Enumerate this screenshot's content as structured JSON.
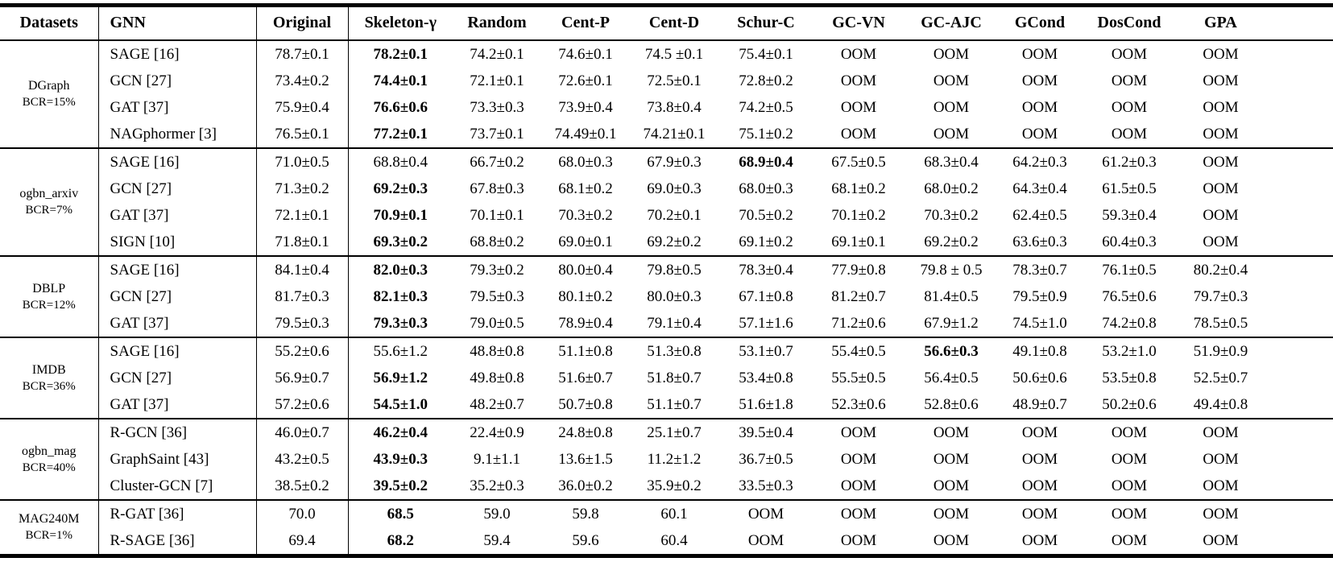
{
  "table": {
    "header": [
      "Datasets",
      "GNN",
      "Original",
      "Skeleton-γ",
      "Random",
      "Cent-P",
      "Cent-D",
      "Schur-C",
      "GC-VN",
      "GC-AJC",
      "GCond",
      "DosCond",
      "GPA"
    ],
    "oom_label": "OOM",
    "groups": [
      {
        "dataset": "DGraph",
        "bcr": "BCR=15%",
        "rows": [
          {
            "gnn": "SAGE [16]",
            "values": [
              "78.7±0.1",
              "78.2±0.1",
              "74.2±0.1",
              "74.6±0.1",
              "74.5 ±0.1",
              "75.4±0.1",
              "OOM",
              "OOM",
              "OOM",
              "OOM",
              "OOM"
            ],
            "bold": [
              1
            ]
          },
          {
            "gnn": "GCN [27]",
            "values": [
              "73.4±0.2",
              "74.4±0.1",
              "72.1±0.1",
              "72.6±0.1",
              "72.5±0.1",
              "72.8±0.2",
              "OOM",
              "OOM",
              "OOM",
              "OOM",
              "OOM"
            ],
            "bold": [
              1
            ]
          },
          {
            "gnn": "GAT [37]",
            "values": [
              "75.9±0.4",
              "76.6±0.6",
              "73.3±0.3",
              "73.9±0.4",
              "73.8±0.4",
              "74.2±0.5",
              "OOM",
              "OOM",
              "OOM",
              "OOM",
              "OOM"
            ],
            "bold": [
              1
            ]
          },
          {
            "gnn": "NAGphormer [3]",
            "values": [
              "76.5±0.1",
              "77.2±0.1",
              "73.7±0.1",
              "74.49±0.1",
              "74.21±0.1",
              "75.1±0.2",
              "OOM",
              "OOM",
              "OOM",
              "OOM",
              "OOM"
            ],
            "bold": [
              1
            ]
          }
        ]
      },
      {
        "dataset": "ogbn_arxiv",
        "bcr": "BCR=7%",
        "rows": [
          {
            "gnn": "SAGE [16]",
            "values": [
              "71.0±0.5",
              "68.8±0.4",
              "66.7±0.2",
              "68.0±0.3",
              "67.9±0.3",
              "68.9±0.4",
              "67.5±0.5",
              "68.3±0.4",
              "64.2±0.3",
              "61.2±0.3",
              "OOM"
            ],
            "bold": [
              5
            ]
          },
          {
            "gnn": "GCN [27]",
            "values": [
              "71.3±0.2",
              "69.2±0.3",
              "67.8±0.3",
              "68.1±0.2",
              "69.0±0.3",
              "68.0±0.3",
              "68.1±0.2",
              "68.0±0.2",
              "64.3±0.4",
              "61.5±0.5",
              "OOM"
            ],
            "bold": [
              1
            ]
          },
          {
            "gnn": "GAT [37]",
            "values": [
              "72.1±0.1",
              "70.9±0.1",
              "70.1±0.1",
              "70.3±0.2",
              "70.2±0.1",
              "70.5±0.2",
              "70.1±0.2",
              "70.3±0.2",
              "62.4±0.5",
              "59.3±0.4",
              "OOM"
            ],
            "bold": [
              1
            ]
          },
          {
            "gnn": "SIGN [10]",
            "values": [
              "71.8±0.1",
              "69.3±0.2",
              "68.8±0.2",
              "69.0±0.1",
              "69.2±0.2",
              "69.1±0.2",
              "69.1±0.1",
              "69.2±0.2",
              "63.6±0.3",
              "60.4±0.3",
              "OOM"
            ],
            "bold": [
              1
            ]
          }
        ]
      },
      {
        "dataset": "DBLP",
        "bcr": "BCR=12%",
        "rows": [
          {
            "gnn": "SAGE [16]",
            "values": [
              "84.1±0.4",
              "82.0±0.3",
              "79.3±0.2",
              "80.0±0.4",
              "79.8±0.5",
              "78.3±0.4",
              "77.9±0.8",
              "79.8 ± 0.5",
              "78.3±0.7",
              "76.1±0.5",
              "80.2±0.4"
            ],
            "bold": [
              1
            ]
          },
          {
            "gnn": "GCN [27]",
            "values": [
              "81.7±0.3",
              "82.1±0.3",
              "79.5±0.3",
              "80.1±0.2",
              "80.0±0.3",
              "67.1±0.8",
              "81.2±0.7",
              "81.4±0.5",
              "79.5±0.9",
              "76.5±0.6",
              "79.7±0.3"
            ],
            "bold": [
              1
            ]
          },
          {
            "gnn": "GAT [37]",
            "values": [
              "79.5±0.3",
              "79.3±0.3",
              "79.0±0.5",
              "78.9±0.4",
              "79.1±0.4",
              "57.1±1.6",
              "71.2±0.6",
              "67.9±1.2",
              "74.5±1.0",
              "74.2±0.8",
              "78.5±0.5"
            ],
            "bold": [
              1
            ]
          }
        ]
      },
      {
        "dataset": "IMDB",
        "bcr": "BCR=36%",
        "rows": [
          {
            "gnn": "SAGE [16]",
            "values": [
              "55.2±0.6",
              "55.6±1.2",
              "48.8±0.8",
              "51.1±0.8",
              "51.3±0.8",
              "53.1±0.7",
              "55.4±0.5",
              "56.6±0.3",
              "49.1±0.8",
              "53.2±1.0",
              "51.9±0.9"
            ],
            "bold": [
              7
            ]
          },
          {
            "gnn": "GCN [27]",
            "values": [
              "56.9±0.7",
              "56.9±1.2",
              "49.8±0.8",
              "51.6±0.7",
              "51.8±0.7",
              "53.4±0.8",
              "55.5±0.5",
              "56.4±0.5",
              "50.6±0.6",
              "53.5±0.8",
              "52.5±0.7"
            ],
            "bold": [
              1
            ]
          },
          {
            "gnn": "GAT [37]",
            "values": [
              "57.2±0.6",
              "54.5±1.0",
              "48.2±0.7",
              "50.7±0.8",
              "51.1±0.7",
              "51.6±1.8",
              "52.3±0.6",
              "52.8±0.6",
              "48.9±0.7",
              "50.2±0.6",
              "49.4±0.8"
            ],
            "bold": [
              1
            ]
          }
        ]
      },
      {
        "dataset": "ogbn_mag",
        "bcr": "BCR=40%",
        "rows": [
          {
            "gnn": "R-GCN [36]",
            "values": [
              "46.0±0.7",
              "46.2±0.4",
              "22.4±0.9",
              "24.8±0.8",
              "25.1±0.7",
              "39.5±0.4",
              "OOM",
              "OOM",
              "OOM",
              "OOM",
              "OOM"
            ],
            "bold": [
              1
            ]
          },
          {
            "gnn": "GraphSaint [43]",
            "values": [
              "43.2±0.5",
              "43.9±0.3",
              "9.1±1.1",
              "13.6±1.5",
              "11.2±1.2",
              "36.7±0.5",
              "OOM",
              "OOM",
              "OOM",
              "OOM",
              "OOM"
            ],
            "bold": [
              1
            ]
          },
          {
            "gnn": "Cluster-GCN [7]",
            "values": [
              "38.5±0.2",
              "39.5±0.2",
              "35.2±0.3",
              "36.0±0.2",
              "35.9±0.2",
              "33.5±0.3",
              "OOM",
              "OOM",
              "OOM",
              "OOM",
              "OOM"
            ],
            "bold": [
              1
            ]
          }
        ]
      },
      {
        "dataset": "MAG240M",
        "bcr": "BCR=1%",
        "rows": [
          {
            "gnn": "R-GAT [36]",
            "values": [
              "70.0",
              "68.5",
              "59.0",
              "59.8",
              "60.1",
              "OOM",
              "OOM",
              "OOM",
              "OOM",
              "OOM",
              "OOM"
            ],
            "bold": [
              1
            ]
          },
          {
            "gnn": "R-SAGE [36]",
            "values": [
              "69.4",
              "68.2",
              "59.4",
              "59.6",
              "60.4",
              "OOM",
              "OOM",
              "OOM",
              "OOM",
              "OOM",
              "OOM"
            ],
            "bold": [
              1
            ]
          }
        ]
      }
    ]
  }
}
